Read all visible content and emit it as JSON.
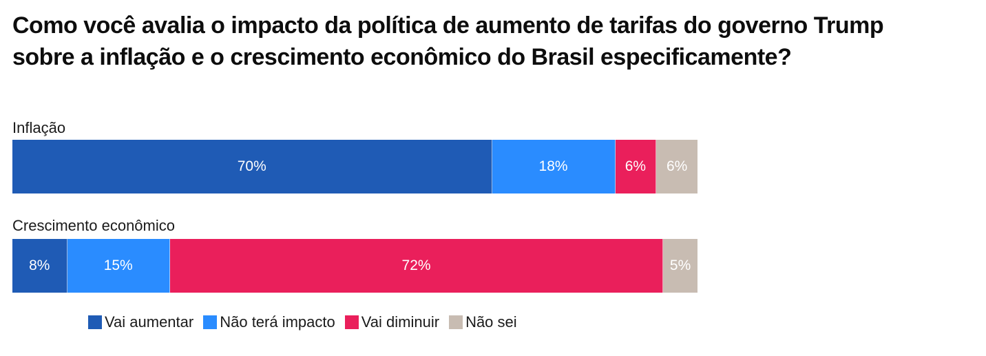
{
  "title_line1": "Como você avalia o impacto da política de aumento de tarifas do governo Trump",
  "title_line2": "sobre a inflação e o crescimento econômico do Brasil especificamente?",
  "chart_data": {
    "type": "bar",
    "orientation": "horizontal",
    "stacked": true,
    "title": "Como você avalia o impacto da política de aumento de tarifas do governo Trump sobre a inflação e o crescimento econômico do Brasil especificamente?",
    "categories": [
      "Inflação",
      "Crescimento econômico"
    ],
    "series": [
      {
        "name": "Vai aumentar",
        "color": "#1f5bb5",
        "values": [
          70,
          8
        ],
        "labels": [
          "70%",
          "8%"
        ]
      },
      {
        "name": "Não terá impacto",
        "color": "#2a8cff",
        "values": [
          18,
          15
        ],
        "labels": [
          "18%",
          "15%"
        ]
      },
      {
        "name": "Vai diminuir",
        "color": "#ea1f5b",
        "values": [
          6,
          72
        ],
        "labels": [
          "6%",
          "72%"
        ]
      },
      {
        "name": "Não sei",
        "color": "#c8bcb2",
        "values": [
          6,
          5
        ],
        "labels": [
          "6%",
          "5%"
        ]
      }
    ],
    "xlim": [
      0,
      100
    ],
    "xlabel": "",
    "ylabel": "",
    "grid": false,
    "legend_position": "bottom"
  }
}
